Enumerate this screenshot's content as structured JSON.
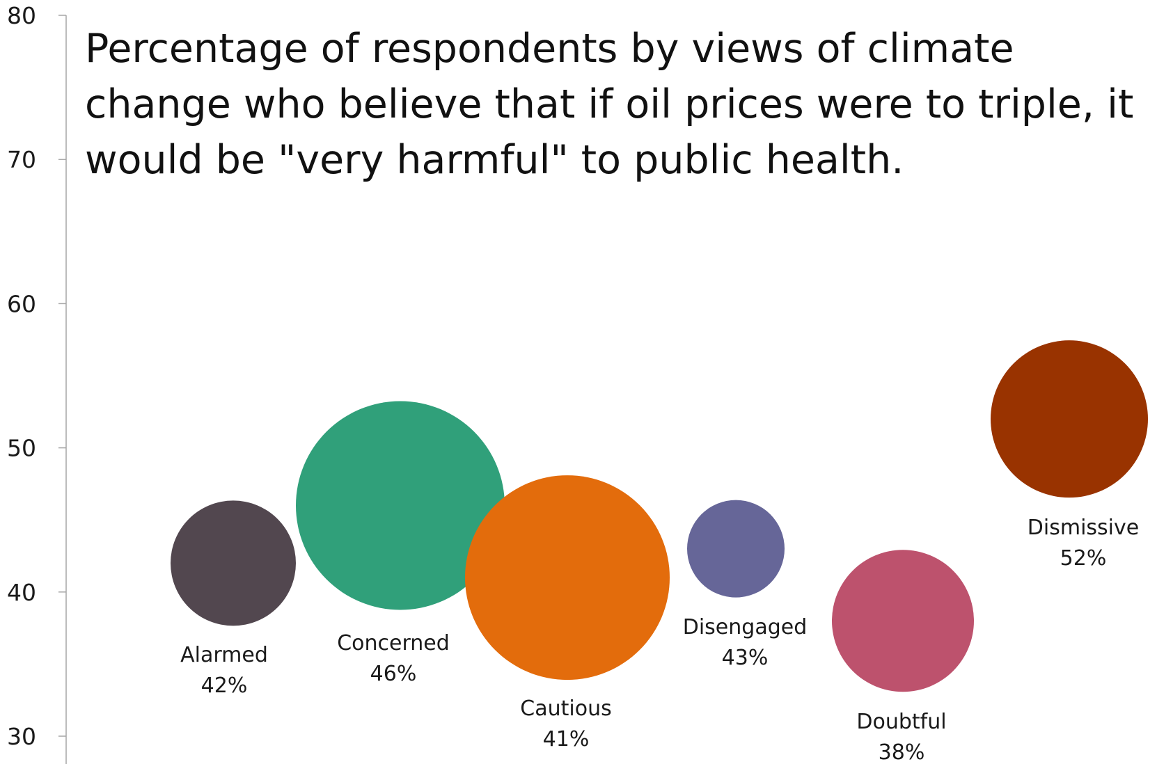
{
  "chart_data": {
    "type": "bubble",
    "title": "Percentage of respondents by views of climate change who believe that if oil prices were to triple, it would be \"very harmful\" to public health.",
    "ylim": [
      30,
      80
    ],
    "yticks": [
      30,
      40,
      50,
      60,
      70,
      80
    ],
    "grid": false,
    "legend": "none",
    "points": [
      {
        "name": "Alarmed",
        "label": "42%",
        "y": 42,
        "color": "#52474f"
      },
      {
        "name": "Concerned",
        "label": "46%",
        "y": 46,
        "color": "#30a07a"
      },
      {
        "name": "Cautious",
        "label": "41%",
        "y": 41,
        "color": "#e36c0c"
      },
      {
        "name": "Disengaged",
        "label": "43%",
        "y": 43,
        "color": "#666698"
      },
      {
        "name": "Doubtful",
        "label": "38%",
        "y": 38,
        "color": "#bd526d"
      },
      {
        "name": "Dismissive",
        "label": "52%",
        "y": 52,
        "color": "#993300"
      }
    ]
  }
}
